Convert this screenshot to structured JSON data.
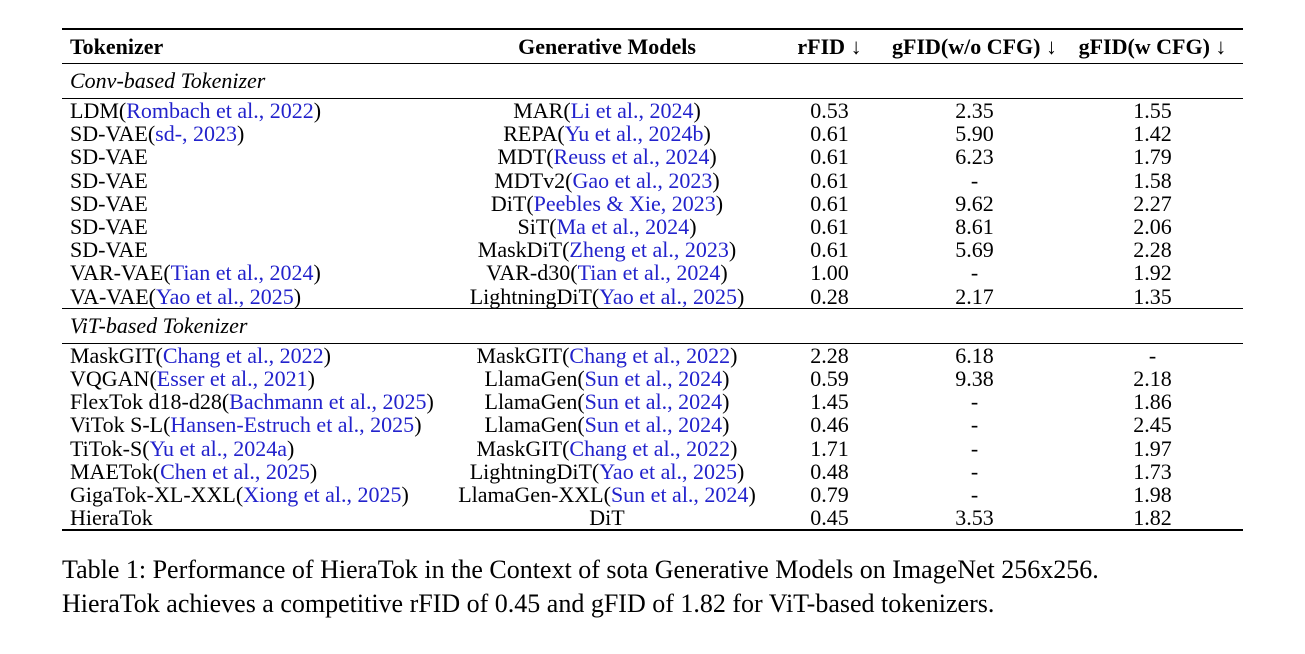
{
  "page": {
    "background": "#ffffff",
    "text_color": "#000000",
    "citation_color": "#2222cc"
  },
  "table": {
    "columns": [
      "Tokenizer",
      "Generative Models",
      "rFID ↓",
      "gFID(w/o CFG) ↓",
      "gFID(w CFG) ↓"
    ],
    "sections": [
      {
        "label": "Conv-based Tokenizer",
        "rows": [
          {
            "tokenizer": {
              "pre": "LDM(",
              "cite": "Rombach et al., 2022",
              "post": ")"
            },
            "model": {
              "pre": "MAR(",
              "cite": "Li et al., 2024",
              "post": ")"
            },
            "rfid": "0.53",
            "gfid_wo_cfg": "2.35",
            "gfid_w_cfg": "1.55"
          },
          {
            "tokenizer": {
              "pre": "SD-VAE(",
              "cite": "sd-, 2023",
              "post": ")"
            },
            "model": {
              "pre": "REPA(",
              "cite": "Yu et al., 2024b",
              "post": ")"
            },
            "rfid": "0.61",
            "gfid_wo_cfg": "5.90",
            "gfid_w_cfg": "1.42"
          },
          {
            "tokenizer": {
              "pre": "SD-VAE",
              "cite": "",
              "post": ""
            },
            "model": {
              "pre": "MDT(",
              "cite": "Reuss et al., 2024",
              "post": ")"
            },
            "rfid": "0.61",
            "gfid_wo_cfg": "6.23",
            "gfid_w_cfg": "1.79"
          },
          {
            "tokenizer": {
              "pre": "SD-VAE",
              "cite": "",
              "post": ""
            },
            "model": {
              "pre": "MDTv2(",
              "cite": "Gao et al., 2023",
              "post": ")"
            },
            "rfid": "0.61",
            "gfid_wo_cfg": "-",
            "gfid_w_cfg": "1.58"
          },
          {
            "tokenizer": {
              "pre": "SD-VAE",
              "cite": "",
              "post": ""
            },
            "model": {
              "pre": "DiT(",
              "cite": "Peebles & Xie, 2023",
              "post": ")"
            },
            "rfid": "0.61",
            "gfid_wo_cfg": "9.62",
            "gfid_w_cfg": "2.27"
          },
          {
            "tokenizer": {
              "pre": "SD-VAE",
              "cite": "",
              "post": ""
            },
            "model": {
              "pre": "SiT(",
              "cite": "Ma et al., 2024",
              "post": ")"
            },
            "rfid": "0.61",
            "gfid_wo_cfg": "8.61",
            "gfid_w_cfg": "2.06"
          },
          {
            "tokenizer": {
              "pre": "SD-VAE",
              "cite": "",
              "post": ""
            },
            "model": {
              "pre": "MaskDiT(",
              "cite": "Zheng et al., 2023",
              "post": ")"
            },
            "rfid": "0.61",
            "gfid_wo_cfg": "5.69",
            "gfid_w_cfg": "2.28"
          },
          {
            "tokenizer": {
              "pre": "VAR-VAE(",
              "cite": "Tian et al., 2024",
              "post": ")"
            },
            "model": {
              "pre": "VAR-d30(",
              "cite": "Tian et al., 2024",
              "post": ")"
            },
            "rfid": "1.00",
            "gfid_wo_cfg": "-",
            "gfid_w_cfg": "1.92"
          },
          {
            "tokenizer": {
              "pre": "VA-VAE(",
              "cite": "Yao et al., 2025",
              "post": ")"
            },
            "model": {
              "pre": "LightningDiT(",
              "cite": "Yao et al., 2025",
              "post": ")"
            },
            "rfid": "0.28",
            "gfid_wo_cfg": "2.17",
            "gfid_w_cfg": "1.35"
          }
        ]
      },
      {
        "label": "ViT-based Tokenizer",
        "rows": [
          {
            "tokenizer": {
              "pre": "MaskGIT(",
              "cite": "Chang et al., 2022",
              "post": ")"
            },
            "model": {
              "pre": "MaskGIT(",
              "cite": "Chang et al., 2022",
              "post": ")"
            },
            "rfid": "2.28",
            "gfid_wo_cfg": "6.18",
            "gfid_w_cfg": "-"
          },
          {
            "tokenizer": {
              "pre": "VQGAN(",
              "cite": "Esser et al., 2021",
              "post": ")"
            },
            "model": {
              "pre": "LlamaGen(",
              "cite": "Sun et al., 2024",
              "post": ")"
            },
            "rfid": "0.59",
            "gfid_wo_cfg": "9.38",
            "gfid_w_cfg": "2.18"
          },
          {
            "tokenizer": {
              "pre": "FlexTok d18-d28(",
              "cite": "Bachmann et al., 2025",
              "post": ")"
            },
            "model": {
              "pre": "LlamaGen(",
              "cite": "Sun et al., 2024",
              "post": ")"
            },
            "rfid": "1.45",
            "gfid_wo_cfg": "-",
            "gfid_w_cfg": "1.86"
          },
          {
            "tokenizer": {
              "pre": "ViTok S-L(",
              "cite": "Hansen-Estruch et al., 2025",
              "post": ")"
            },
            "model": {
              "pre": "LlamaGen(",
              "cite": "Sun et al., 2024",
              "post": ")"
            },
            "rfid": "0.46",
            "gfid_wo_cfg": "-",
            "gfid_w_cfg": "2.45"
          },
          {
            "tokenizer": {
              "pre": "TiTok-S(",
              "cite": "Yu et al., 2024a",
              "post": ")"
            },
            "model": {
              "pre": "MaskGIT(",
              "cite": "Chang et al., 2022",
              "post": ")"
            },
            "rfid": "1.71",
            "gfid_wo_cfg": "-",
            "gfid_w_cfg": "1.97"
          },
          {
            "tokenizer": {
              "pre": "MAETok(",
              "cite": "Chen et al., 2025",
              "post": ")"
            },
            "model": {
              "pre": "LightningDiT(",
              "cite": "Yao et al., 2025",
              "post": ")"
            },
            "rfid": "0.48",
            "gfid_wo_cfg": "-",
            "gfid_w_cfg": "1.73"
          },
          {
            "tokenizer": {
              "pre": "GigaTok-XL-XXL(",
              "cite": "Xiong et al., 2025",
              "post": ")"
            },
            "model": {
              "pre": "LlamaGen-XXL(",
              "cite": "Sun et al., 2024",
              "post": ")"
            },
            "rfid": "0.79",
            "gfid_wo_cfg": "-",
            "gfid_w_cfg": "1.98"
          },
          {
            "tokenizer": {
              "pre": "HieraTok",
              "cite": "",
              "post": ""
            },
            "model": {
              "pre": "DiT",
              "cite": "",
              "post": ""
            },
            "rfid": "0.45",
            "gfid_wo_cfg": "3.53",
            "gfid_w_cfg": "1.82"
          }
        ]
      }
    ]
  },
  "caption": {
    "lines": [
      "Table 1: Performance of HieraTok in the Context of sota Generative Models on ImageNet 256x256.",
      "HieraTok achieves a competitive rFID of 0.45 and gFID of 1.82 for ViT-based tokenizers."
    ]
  }
}
